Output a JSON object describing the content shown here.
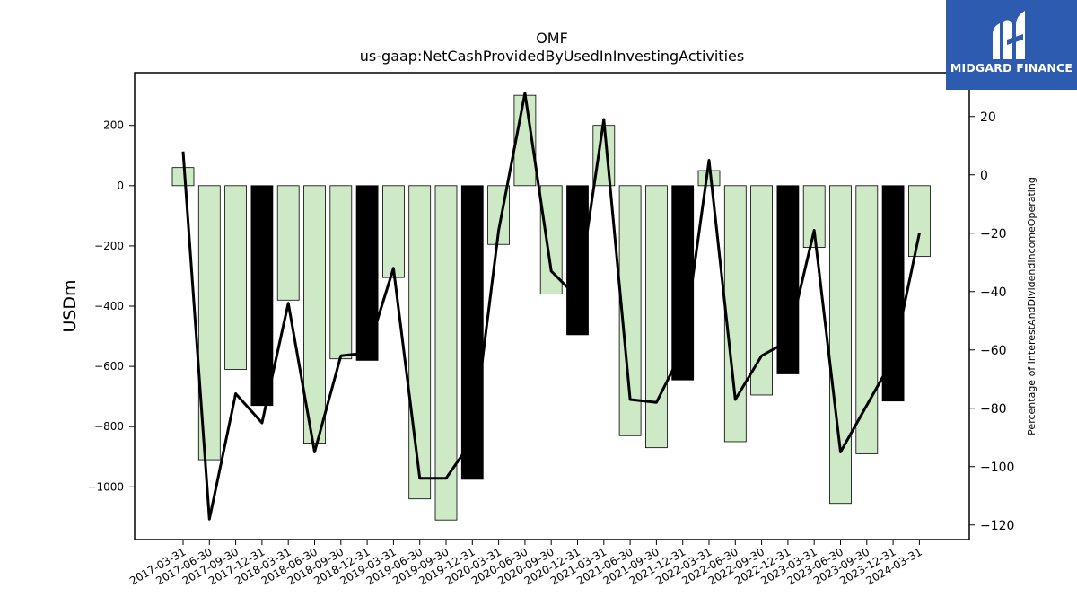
{
  "chart_data": {
    "type": "bar",
    "title": "OMF",
    "subtitle": "us-gaap:NetCashProvidedByUsedInInvestingActivities",
    "ylabel": "USDm",
    "y2label": "Percentage of InterestAndDividendIncomeOperating",
    "categories": [
      "2017-03-31",
      "2017-06-30",
      "2017-09-30",
      "2017-12-31",
      "2018-03-31",
      "2018-06-30",
      "2018-09-30",
      "2018-12-31",
      "2019-03-31",
      "2019-06-30",
      "2019-09-30",
      "2019-12-31",
      "2020-03-31",
      "2020-06-30",
      "2020-09-30",
      "2020-12-31",
      "2021-03-31",
      "2021-06-30",
      "2021-09-30",
      "2021-12-31",
      "2022-03-31",
      "2022-06-30",
      "2022-09-30",
      "2022-12-31",
      "2023-03-31",
      "2023-06-30",
      "2023-09-30",
      "2023-12-31",
      "2024-03-31"
    ],
    "series": [
      {
        "axis": "left",
        "kind": "bar",
        "values": [
          60,
          -910,
          -610,
          -730,
          -380,
          -855,
          -575,
          -580,
          -305,
          -1040,
          -1110,
          -975,
          -195,
          300,
          -360,
          -495,
          200,
          -830,
          -870,
          -645,
          50,
          -850,
          -695,
          -625,
          -205,
          -1055,
          -890,
          -715,
          -235
        ],
        "highlight": [
          false,
          false,
          false,
          true,
          false,
          false,
          false,
          true,
          false,
          false,
          false,
          true,
          false,
          false,
          false,
          true,
          false,
          false,
          false,
          true,
          false,
          false,
          false,
          true,
          false,
          false,
          false,
          true,
          false
        ]
      },
      {
        "axis": "right",
        "kind": "line",
        "values": [
          8,
          -118,
          -75,
          -85,
          -44,
          -95,
          -62,
          -61,
          -32,
          -104,
          -104,
          -91,
          -19,
          28,
          -33,
          -42,
          19,
          -77,
          -78,
          -60,
          5,
          -77,
          -62,
          -57,
          -19,
          -95,
          -79,
          -63,
          -20
        ]
      }
    ],
    "ylim": [
      -1175,
      375
    ],
    "y2lim": [
      -125,
      35
    ],
    "yticks": [
      200,
      0,
      -200,
      -400,
      -600,
      -800,
      -1000
    ],
    "yticklabels": [
      "200",
      "0",
      "−200",
      "−400",
      "−600",
      "−800",
      "−1000"
    ],
    "y2ticks": [
      20,
      0,
      -20,
      -40,
      -60,
      -80,
      -100,
      -120
    ],
    "y2ticklabels": [
      "20",
      "0",
      "−20",
      "−40",
      "−60",
      "−80",
      "−100",
      "−120"
    ],
    "colors": {
      "bar": "#cde9c5",
      "highlight": "#000000",
      "line": "#000000"
    },
    "grid": false,
    "legend": "none"
  },
  "logo": {
    "text": "MIDGARD FINANCE",
    "color": "#2c5bb0"
  }
}
